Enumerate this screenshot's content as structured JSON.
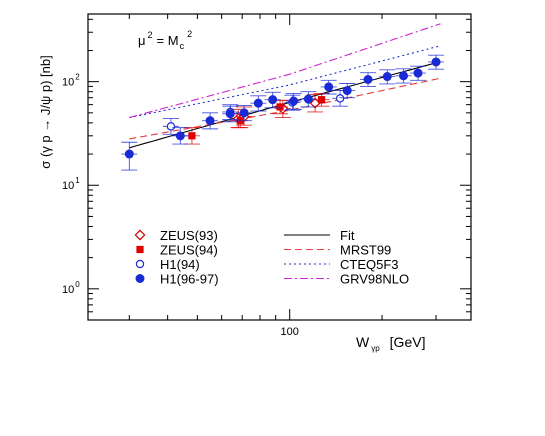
{
  "chart_data": {
    "type": "scatter",
    "title": "",
    "xlabel": "W",
    "xlabel_sub": "γp",
    "xlabel_unit": "[GeV]",
    "ylabel": "σ (γ p → J/ψ p)  [nb]",
    "annotation": {
      "text": "μ",
      "sup1": "2",
      "eq": "= M",
      "sub": "c",
      "sup2": "2"
    },
    "x_scale": "log",
    "y_scale": "log",
    "xlim": [
      22,
      390
    ],
    "ylim": [
      0.5,
      450
    ],
    "x_ticks": [
      {
        "value": 100,
        "label": "100"
      }
    ],
    "y_ticks": [
      {
        "value": 1,
        "base": "10",
        "exp": "0"
      },
      {
        "value": 10,
        "base": "10",
        "exp": "1"
      },
      {
        "value": 100,
        "base": "10",
        "exp": "2"
      }
    ],
    "grid": false,
    "legend_position": "bottom-left",
    "series": [
      {
        "name": "ZEUS(93)",
        "kind": "points",
        "marker": "diamond-open",
        "color": "#d40000",
        "points": [
          {
            "x": 68,
            "y": 44,
            "lo": 36,
            "hi": 54
          },
          {
            "x": 71,
            "y": 46,
            "lo": 38,
            "hi": 57
          },
          {
            "x": 95,
            "y": 55,
            "lo": 45,
            "hi": 66
          },
          {
            "x": 121,
            "y": 62,
            "lo": 51,
            "hi": 75
          }
        ]
      },
      {
        "name": "ZEUS(94)",
        "kind": "points",
        "marker": "square-filled",
        "color": "#e00000",
        "points": [
          {
            "x": 48,
            "y": 30,
            "lo": 25,
            "hi": 36
          },
          {
            "x": 69,
            "y": 42,
            "lo": 36,
            "hi": 49
          },
          {
            "x": 93,
            "y": 57,
            "lo": 49,
            "hi": 66
          },
          {
            "x": 127,
            "y": 67,
            "lo": 58,
            "hi": 77
          }
        ]
      },
      {
        "name": "H1(94)",
        "kind": "points",
        "marker": "circle-open",
        "color": "#1a2bd6",
        "points": [
          {
            "x": 41,
            "y": 37,
            "lo": 31,
            "hi": 44
          },
          {
            "x": 64,
            "y": 51,
            "lo": 43,
            "hi": 60
          },
          {
            "x": 102,
            "y": 63,
            "lo": 53,
            "hi": 74
          },
          {
            "x": 146,
            "y": 69,
            "lo": 58,
            "hi": 82
          }
        ]
      },
      {
        "name": "H1(96-97)",
        "kind": "points",
        "marker": "circle-filled",
        "color": "#1a2bd6",
        "points": [
          {
            "x": 30,
            "y": 20,
            "lo": 14,
            "hi": 26
          },
          {
            "x": 44,
            "y": 30,
            "lo": 25,
            "hi": 36
          },
          {
            "x": 55,
            "y": 42,
            "lo": 35,
            "hi": 50
          },
          {
            "x": 64,
            "y": 49,
            "lo": 41,
            "hi": 58
          },
          {
            "x": 71,
            "y": 50,
            "lo": 42,
            "hi": 59
          },
          {
            "x": 79,
            "y": 62,
            "lo": 52,
            "hi": 73
          },
          {
            "x": 88,
            "y": 67,
            "lo": 56,
            "hi": 79
          },
          {
            "x": 103,
            "y": 65,
            "lo": 54,
            "hi": 77
          },
          {
            "x": 115,
            "y": 68,
            "lo": 57,
            "hi": 80
          },
          {
            "x": 134,
            "y": 89,
            "lo": 76,
            "hi": 103
          },
          {
            "x": 154,
            "y": 82,
            "lo": 70,
            "hi": 96
          },
          {
            "x": 180,
            "y": 105,
            "lo": 90,
            "hi": 122
          },
          {
            "x": 208,
            "y": 112,
            "lo": 95,
            "hi": 130
          },
          {
            "x": 235,
            "y": 114,
            "lo": 97,
            "hi": 133
          },
          {
            "x": 262,
            "y": 121,
            "lo": 103,
            "hi": 141
          },
          {
            "x": 300,
            "y": 155,
            "lo": 132,
            "hi": 180
          }
        ]
      },
      {
        "name": "Fit",
        "kind": "line",
        "dash": "solid",
        "color": "#000000",
        "x": [
          30,
          100,
          310
        ],
        "y": [
          23,
          63,
          156
        ]
      },
      {
        "name": "MRST99",
        "kind": "line",
        "dash": "dashed",
        "color": "#e04040",
        "x": [
          30,
          100,
          310
        ],
        "y": [
          28,
          53,
          108
        ]
      },
      {
        "name": "CTEQ5F3",
        "kind": "line",
        "dash": "dotted",
        "color": "#2030d0",
        "x": [
          30,
          100,
          310
        ],
        "y": [
          45,
          93,
          222
        ]
      },
      {
        "name": "GRV98NLO",
        "kind": "line",
        "dash": "dashdot",
        "color": "#d020d0",
        "x": [
          30,
          100,
          310
        ],
        "y": [
          45,
          118,
          362
        ]
      }
    ]
  }
}
